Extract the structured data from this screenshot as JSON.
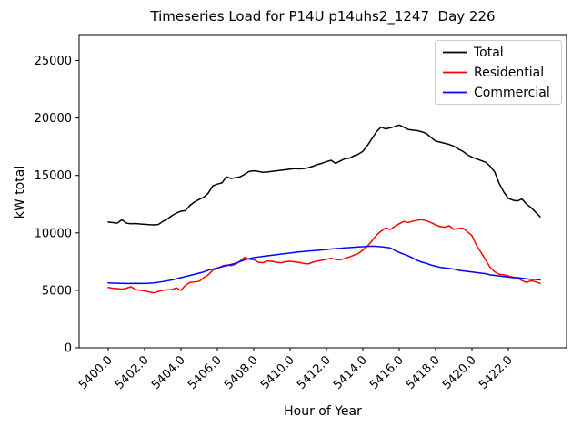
{
  "figure": {
    "background": "#ffffff"
  },
  "chart_data": {
    "type": "line",
    "title": "Timeseries Load for P14U p14uhs2_1247  Day 226",
    "xlabel": "Hour of Year",
    "ylabel": "kW total",
    "xlim": [
      5398.4,
      5425.2
    ],
    "ylim": [
      0,
      27260
    ],
    "grid": false,
    "legend_position": "upper right",
    "x_tick_rotation": 45,
    "x_ticks": [
      5400,
      5402,
      5404,
      5406,
      5408,
      5410,
      5412,
      5414,
      5416,
      5418,
      5420,
      5422
    ],
    "x_tick_labels": [
      "5400.0",
      "5402.0",
      "5404.0",
      "5406.0",
      "5408.0",
      "5410.0",
      "5412.0",
      "5414.0",
      "5416.0",
      "5418.0",
      "5420.0",
      "5422.0"
    ],
    "y_ticks": [
      0,
      5000,
      10000,
      15000,
      20000,
      25000
    ],
    "y_tick_labels": [
      "0",
      "5000",
      "10000",
      "15000",
      "20000",
      "25000"
    ],
    "x": [
      5400.0,
      5400.25,
      5400.5,
      5400.75,
      5401.0,
      5401.25,
      5401.5,
      5401.75,
      5402.0,
      5402.25,
      5402.5,
      5402.75,
      5403.0,
      5403.25,
      5403.5,
      5403.75,
      5404.0,
      5404.25,
      5404.5,
      5404.75,
      5405.0,
      5405.25,
      5405.5,
      5405.75,
      5406.0,
      5406.25,
      5406.5,
      5406.75,
      5407.0,
      5407.25,
      5407.5,
      5407.75,
      5408.0,
      5408.25,
      5408.5,
      5408.75,
      5409.0,
      5409.25,
      5409.5,
      5409.75,
      5410.0,
      5410.25,
      5410.5,
      5410.75,
      5411.0,
      5411.25,
      5411.5,
      5411.75,
      5412.0,
      5412.25,
      5412.5,
      5412.75,
      5413.0,
      5413.25,
      5413.5,
      5413.75,
      5414.0,
      5414.25,
      5414.5,
      5414.75,
      5415.0,
      5415.25,
      5415.5,
      5415.75,
      5416.0,
      5416.25,
      5416.5,
      5416.75,
      5417.0,
      5417.25,
      5417.5,
      5417.75,
      5418.0,
      5418.25,
      5418.5,
      5418.75,
      5419.0,
      5419.25,
      5419.5,
      5419.75,
      5420.0,
      5420.25,
      5420.5,
      5420.75,
      5421.0,
      5421.25,
      5421.5,
      5421.75,
      5422.0,
      5422.25,
      5422.5,
      5422.75,
      5423.0,
      5423.25,
      5423.5,
      5423.75
    ],
    "series": [
      {
        "name": "Total",
        "color": "#000000",
        "values": [
          10950,
          10900,
          10850,
          11150,
          10850,
          10800,
          10820,
          10780,
          10750,
          10720,
          10700,
          10730,
          11000,
          11200,
          11500,
          11730,
          11890,
          11950,
          12400,
          12700,
          12910,
          13100,
          13460,
          14090,
          14250,
          14350,
          14880,
          14740,
          14800,
          14880,
          15100,
          15350,
          15400,
          15350,
          15270,
          15300,
          15350,
          15400,
          15450,
          15500,
          15550,
          15600,
          15570,
          15600,
          15670,
          15800,
          15950,
          16060,
          16200,
          16320,
          16060,
          16250,
          16450,
          16500,
          16700,
          16850,
          17100,
          17600,
          18200,
          18800,
          19215,
          19050,
          19150,
          19250,
          19390,
          19200,
          19000,
          18950,
          18900,
          18800,
          18650,
          18300,
          18000,
          17900,
          17800,
          17700,
          17550,
          17300,
          17100,
          16800,
          16600,
          16450,
          16300,
          16150,
          15800,
          15300,
          14300,
          13560,
          13000,
          12850,
          12780,
          12950,
          12500,
          12200,
          11800,
          11400
        ]
      },
      {
        "name": "Residential",
        "color": "#ff0000",
        "values": [
          5250,
          5180,
          5150,
          5100,
          5180,
          5320,
          5060,
          5000,
          4950,
          4860,
          4780,
          4900,
          5000,
          5040,
          5060,
          5220,
          4990,
          5450,
          5690,
          5730,
          5780,
          6100,
          6350,
          6750,
          6900,
          7100,
          7200,
          7150,
          7270,
          7550,
          7870,
          7700,
          7670,
          7450,
          7400,
          7550,
          7530,
          7450,
          7400,
          7500,
          7530,
          7480,
          7430,
          7350,
          7300,
          7450,
          7550,
          7620,
          7700,
          7790,
          7690,
          7660,
          7760,
          7900,
          8050,
          8200,
          8500,
          8850,
          9300,
          9800,
          10150,
          10420,
          10290,
          10550,
          10800,
          11000,
          10900,
          11020,
          11100,
          11150,
          11050,
          10900,
          10700,
          10550,
          10500,
          10620,
          10300,
          10380,
          10420,
          10100,
          9760,
          8900,
          8300,
          7660,
          7000,
          6610,
          6400,
          6350,
          6250,
          6150,
          6090,
          5850,
          5690,
          5830,
          5750,
          5600
        ]
      },
      {
        "name": "Commercial",
        "color": "#0000ff",
        "values": [
          5650,
          5630,
          5620,
          5610,
          5600,
          5600,
          5610,
          5600,
          5600,
          5620,
          5650,
          5700,
          5760,
          5830,
          5900,
          6000,
          6100,
          6200,
          6300,
          6400,
          6500,
          6600,
          6750,
          6850,
          6950,
          7050,
          7150,
          7250,
          7350,
          7500,
          7650,
          7750,
          7850,
          7900,
          7950,
          8000,
          8050,
          8100,
          8150,
          8200,
          8250,
          8300,
          8350,
          8380,
          8420,
          8450,
          8480,
          8520,
          8550,
          8600,
          8630,
          8660,
          8700,
          8720,
          8750,
          8780,
          8800,
          8830,
          8850,
          8830,
          8800,
          8750,
          8700,
          8500,
          8300,
          8150,
          8000,
          7800,
          7600,
          7450,
          7350,
          7200,
          7100,
          7000,
          6950,
          6900,
          6850,
          6750,
          6700,
          6650,
          6600,
          6550,
          6500,
          6450,
          6350,
          6300,
          6250,
          6200,
          6150,
          6100,
          6100,
          6050,
          6000,
          5950,
          5950,
          5900
        ]
      }
    ]
  }
}
